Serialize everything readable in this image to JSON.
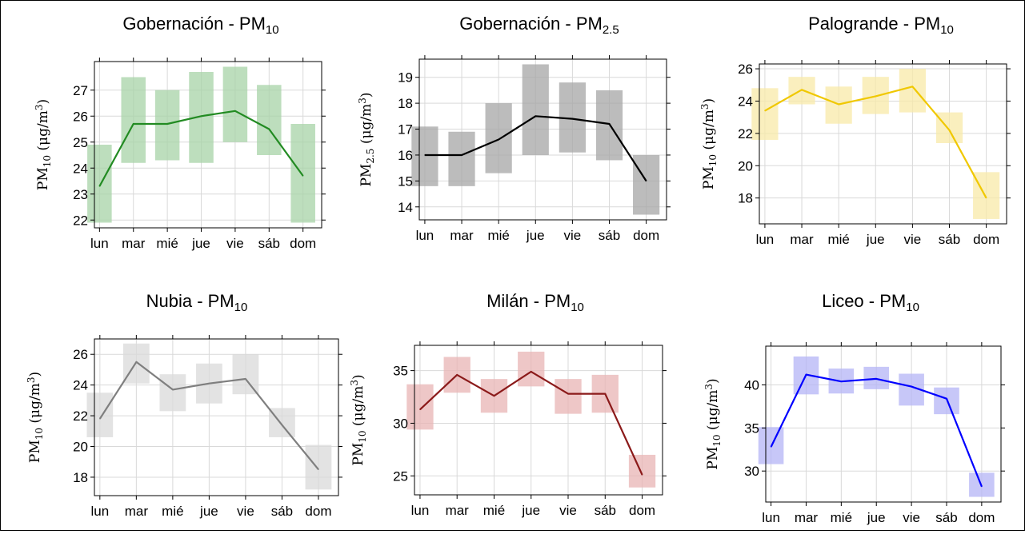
{
  "chart_data": [
    {
      "type": "line",
      "title": "Gobernación - PM",
      "title_sub": "10",
      "ylabel_main": "PM",
      "ylabel_sub": "10",
      "ylabel_unit": "(μg/m",
      "ylabel_sup": "3",
      "ylabel_close": ")",
      "categories": [
        "lun",
        "mar",
        "mié",
        "jue",
        "vie",
        "sáb",
        "dom"
      ],
      "values": [
        23.3,
        25.7,
        25.7,
        26.0,
        26.2,
        25.5,
        23.7
      ],
      "lower": [
        21.9,
        24.2,
        24.3,
        24.2,
        25.0,
        24.5,
        21.9
      ],
      "upper": [
        24.9,
        27.5,
        27.0,
        27.7,
        27.9,
        27.2,
        25.7
      ],
      "yticks": [
        22,
        23,
        24,
        25,
        26,
        27
      ],
      "ylim": [
        21.7,
        28.1
      ],
      "line_color": "#228b22",
      "band_color": "#a7d3a7"
    },
    {
      "type": "line",
      "title": "Gobernación - PM",
      "title_sub": "2.5",
      "ylabel_main": "PM",
      "ylabel_sub": "2.5",
      "ylabel_unit": "(μg/m",
      "ylabel_sup": "3",
      "ylabel_close": ")",
      "categories": [
        "lun",
        "mar",
        "mié",
        "jue",
        "vie",
        "sáb",
        "dom"
      ],
      "values": [
        16.0,
        16.0,
        16.6,
        17.5,
        17.4,
        17.2,
        15.0
      ],
      "lower": [
        14.8,
        14.8,
        15.3,
        16.0,
        16.1,
        15.8,
        13.7
      ],
      "upper": [
        17.1,
        16.9,
        18.0,
        19.5,
        18.8,
        18.5,
        16.0
      ],
      "yticks": [
        14,
        15,
        16,
        17,
        18,
        19
      ],
      "ylim": [
        13.5,
        19.7
      ],
      "line_color": "#000000",
      "band_color": "#a6a6a6"
    },
    {
      "type": "line",
      "title": "Palogrande - PM",
      "title_sub": "10",
      "ylabel_main": "PM",
      "ylabel_sub": "10",
      "ylabel_unit": "(μg/m",
      "ylabel_sup": "3",
      "ylabel_close": ")",
      "categories": [
        "lun",
        "mar",
        "mié",
        "jue",
        "vie",
        "sáb",
        "dom"
      ],
      "values": [
        23.4,
        24.7,
        23.8,
        24.3,
        24.9,
        22.2,
        18.0
      ],
      "lower": [
        21.6,
        23.8,
        22.6,
        23.2,
        23.3,
        21.4,
        16.7
      ],
      "upper": [
        24.8,
        25.5,
        24.9,
        25.5,
        26.0,
        23.3,
        19.6
      ],
      "yticks": [
        18,
        20,
        22,
        24,
        26
      ],
      "ylim": [
        16.4,
        26.3
      ],
      "line_color": "#f0c800",
      "band_color": "#f8e9a8"
    },
    {
      "type": "line",
      "title": "Nubia - PM",
      "title_sub": "10",
      "ylabel_main": "PM",
      "ylabel_sub": "10",
      "ylabel_unit": "(μg/m",
      "ylabel_sup": "3",
      "ylabel_close": ")",
      "categories": [
        "lun",
        "mar",
        "mié",
        "jue",
        "vie",
        "sáb",
        "dom"
      ],
      "values": [
        21.8,
        25.5,
        23.7,
        24.1,
        24.4,
        21.4,
        18.5
      ],
      "lower": [
        20.6,
        24.1,
        22.3,
        22.8,
        23.4,
        20.6,
        17.2
      ],
      "upper": [
        23.5,
        26.7,
        24.7,
        25.4,
        26.0,
        22.5,
        20.1
      ],
      "yticks": [
        18,
        20,
        22,
        24,
        26
      ],
      "ylim": [
        16.8,
        27.0
      ],
      "line_color": "#7f7f7f",
      "band_color": "#d9d9d9"
    },
    {
      "type": "line",
      "title": "Milán - PM",
      "title_sub": "10",
      "ylabel_main": "PM",
      "ylabel_sub": "10",
      "ylabel_unit": "(μg/m",
      "ylabel_sup": "3",
      "ylabel_close": ")",
      "categories": [
        "lun",
        "mar",
        "mié",
        "jue",
        "vie",
        "sáb",
        "dom"
      ],
      "values": [
        31.3,
        34.6,
        32.6,
        34.9,
        32.8,
        32.8,
        25.1
      ],
      "lower": [
        29.4,
        32.9,
        31.0,
        33.5,
        30.9,
        31.0,
        23.9
      ],
      "upper": [
        33.7,
        36.3,
        34.2,
        36.8,
        34.2,
        34.6,
        27.0
      ],
      "yticks": [
        25,
        30,
        35
      ],
      "ylim": [
        23.2,
        37.4
      ],
      "line_color": "#8b1a1a",
      "band_color": "#e8b4b4"
    },
    {
      "type": "line",
      "title": "Liceo - PM",
      "title_sub": "10",
      "ylabel_main": "PM",
      "ylabel_sub": "10",
      "ylabel_unit": "(μg/m",
      "ylabel_sup": "3",
      "ylabel_close": ")",
      "categories": [
        "lun",
        "mar",
        "mié",
        "jue",
        "vie",
        "sáb",
        "dom"
      ],
      "values": [
        32.8,
        41.2,
        40.4,
        40.7,
        39.8,
        38.4,
        28.2
      ],
      "lower": [
        30.8,
        38.9,
        39.0,
        39.5,
        37.6,
        36.6,
        27.0
      ],
      "upper": [
        35.1,
        43.3,
        41.9,
        42.1,
        41.3,
        39.7,
        29.8
      ],
      "yticks": [
        30,
        35,
        40
      ],
      "ylim": [
        26.4,
        44.5
      ],
      "line_color": "#0000ff",
      "band_color": "#b4b4f5"
    }
  ]
}
